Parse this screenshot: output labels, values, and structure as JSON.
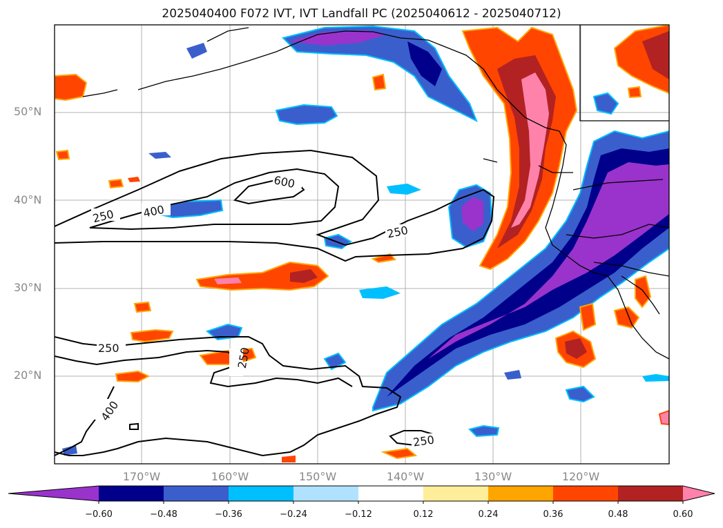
{
  "title": "2025040400 F072 IVT, IVT Landfall PC (2025040612 - 2025040712)",
  "lat_labels": [
    "50°N",
    "40°N",
    "30°N",
    "20°N"
  ],
  "lon_labels": [
    "170°W",
    "160°W",
    "150°W",
    "140°W",
    "130°W",
    "120°W"
  ],
  "colorbar": {
    "colors": [
      "#9933cc",
      "#00008b",
      "#3a5fcd",
      "#00bfff",
      "#b0e2ff",
      "#ffffff",
      "#ffee99",
      "#ffa500",
      "#ff4500",
      "#b22222",
      "#ff82ab"
    ],
    "tick_labels": [
      "−0.60",
      "−0.48",
      "−0.36",
      "−0.24",
      "−0.12",
      "0.12",
      "0.24",
      "0.36",
      "0.48",
      "0.60"
    ],
    "extend": "both"
  },
  "contour_labels": [
    "250",
    "400",
    "600",
    "250",
    "250",
    "250",
    "400",
    "250"
  ]
}
